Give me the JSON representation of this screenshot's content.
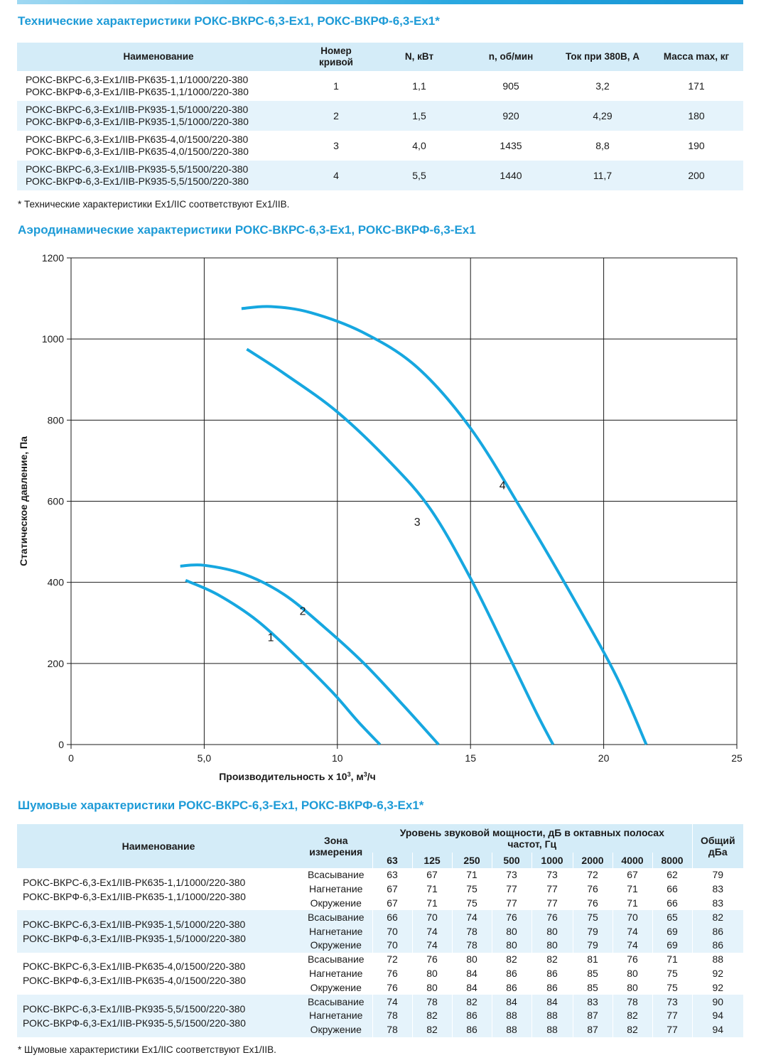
{
  "tech": {
    "title": "Технические характеристики РОКС-ВКРС-6,3-Ex1, РОКС-ВКРФ-6,3-Ex1*",
    "headers": {
      "name": "Наименование",
      "curve_l1": "Номер",
      "curve_l2": "кривой",
      "power": "N, кВт",
      "speed": "n, об/мин",
      "current": "Ток при 380В, А",
      "mass": "Масса max, кг"
    },
    "rows": [
      {
        "n1": "РОКС-ВКРС-6,3-Ex1/IIB-РК635-1,1/1000/220-380",
        "n2": "РОКС-ВКРФ-6,3-Ex1/IIB-РК635-1,1/1000/220-380",
        "curve": "1",
        "power": "1,1",
        "speed": "905",
        "current": "3,2",
        "mass": "171"
      },
      {
        "n1": "РОКС-ВКРС-6,3-Ex1/IIB-РК935-1,5/1000/220-380",
        "n2": "РОКС-ВКРФ-6,3-Ex1/IIB-РК935-1,5/1000/220-380",
        "curve": "2",
        "power": "1,5",
        "speed": "920",
        "current": "4,29",
        "mass": "180"
      },
      {
        "n1": "РОКС-ВКРС-6,3-Ex1/IIB-РК635-4,0/1500/220-380",
        "n2": "РОКС-ВКРФ-6,3-Ex1/IIB-РК635-4,0/1500/220-380",
        "curve": "3",
        "power": "4,0",
        "speed": "1435",
        "current": "8,8",
        "mass": "190"
      },
      {
        "n1": "РОКС-ВКРС-6,3-Ex1/IIB-РК935-5,5/1500/220-380",
        "n2": "РОКС-ВКРФ-6,3-Ex1/IIB-РК935-5,5/1500/220-380",
        "curve": "4",
        "power": "5,5",
        "speed": "1440",
        "current": "11,7",
        "mass": "200"
      }
    ],
    "note": "* Технические характеристики Ex1/IIC соответствуют Ex1/IIB."
  },
  "aero": {
    "title": "Аэродинамические характеристики РОКС-ВКРС-6,3-Ex1, РОКС-ВКРФ-6,3-Ex1"
  },
  "chart_data": {
    "type": "line",
    "title": "",
    "xlabel_main": "Производительность х 10",
    "xlabel_sup": "3",
    "xlabel_unit": ", м",
    "xlabel_unit_sup": "3",
    "xlabel_tail": "/ч",
    "ylabel": "Статическое давление, Па",
    "xlim": [
      0,
      25
    ],
    "ylim": [
      0,
      1200
    ],
    "grid": true,
    "x_ticks": [
      0,
      5,
      10,
      15,
      20,
      25
    ],
    "x_tick_labels": [
      "0",
      "5,0",
      "10",
      "15",
      "20",
      "25"
    ],
    "y_ticks": [
      0,
      200,
      400,
      600,
      800,
      1000,
      1200
    ],
    "y_tick_labels": [
      "0",
      "200",
      "400",
      "600",
      "800",
      "1000",
      "1200"
    ],
    "line_color": "#16a7e0",
    "series": [
      {
        "label": "1",
        "label_pos": [
          7.5,
          255
        ],
        "points": [
          [
            4.3,
            405
          ],
          [
            5.5,
            370
          ],
          [
            7.0,
            305
          ],
          [
            8.5,
            215
          ],
          [
            9.8,
            130
          ],
          [
            10.8,
            55
          ],
          [
            11.6,
            0
          ]
        ]
      },
      {
        "label": "2",
        "label_pos": [
          8.7,
          320
        ],
        "points": [
          [
            4.1,
            440
          ],
          [
            5.0,
            442
          ],
          [
            6.5,
            420
          ],
          [
            8.0,
            370
          ],
          [
            9.5,
            290
          ],
          [
            11.0,
            200
          ],
          [
            12.5,
            95
          ],
          [
            13.8,
            0
          ]
        ]
      },
      {
        "label": "3",
        "label_pos": [
          13.0,
          540
        ],
        "points": [
          [
            6.6,
            975
          ],
          [
            8.0,
            915
          ],
          [
            10.0,
            820
          ],
          [
            12.0,
            695
          ],
          [
            13.5,
            580
          ],
          [
            15.0,
            410
          ],
          [
            16.5,
            210
          ],
          [
            17.5,
            75
          ],
          [
            18.1,
            0
          ]
        ]
      },
      {
        "label": "4",
        "label_pos": [
          16.2,
          630
        ],
        "points": [
          [
            6.4,
            1075
          ],
          [
            7.5,
            1080
          ],
          [
            9.0,
            1065
          ],
          [
            11.0,
            1015
          ],
          [
            13.0,
            930
          ],
          [
            15.0,
            780
          ],
          [
            17.0,
            570
          ],
          [
            19.0,
            345
          ],
          [
            20.5,
            165
          ],
          [
            21.6,
            0
          ]
        ]
      }
    ]
  },
  "noise": {
    "title": "Шумовые характеристики РОКС-ВКРС-6,3-Ex1, РОКС-ВКРФ-6,3-Ex1*",
    "headers": {
      "name": "Наименование",
      "zone_l1": "Зона",
      "zone_l2": "измерения",
      "level_l1": "Уровень звуковой мощности, дБ в октавных полосах",
      "level_l2": "частот, Гц",
      "total_l1": "Общий",
      "total_l2": "дБа"
    },
    "freqs": [
      "63",
      "125",
      "250",
      "500",
      "1000",
      "2000",
      "4000",
      "8000"
    ],
    "groups": [
      {
        "n1": "РОКС-ВКРС-6,3-Ex1/IIB-РК635-1,1/1000/220-380",
        "n2": "РОКС-ВКРФ-6,3-Ex1/IIB-РК635-1,1/1000/220-380",
        "rows": [
          {
            "zone": "Всасывание",
            "v": [
              "63",
              "67",
              "71",
              "73",
              "73",
              "72",
              "67",
              "62"
            ],
            "total": "79"
          },
          {
            "zone": "Нагнетание",
            "v": [
              "67",
              "71",
              "75",
              "77",
              "77",
              "76",
              "71",
              "66"
            ],
            "total": "83"
          },
          {
            "zone": "Окружение",
            "v": [
              "67",
              "71",
              "75",
              "77",
              "77",
              "76",
              "71",
              "66"
            ],
            "total": "83"
          }
        ]
      },
      {
        "n1": "РОКС-ВКРС-6,3-Ex1/IIB-РК935-1,5/1000/220-380",
        "n2": "РОКС-ВКРФ-6,3-Ex1/IIB-РК935-1,5/1000/220-380",
        "rows": [
          {
            "zone": "Всасывание",
            "v": [
              "66",
              "70",
              "74",
              "76",
              "76",
              "75",
              "70",
              "65"
            ],
            "total": "82"
          },
          {
            "zone": "Нагнетание",
            "v": [
              "70",
              "74",
              "78",
              "80",
              "80",
              "79",
              "74",
              "69"
            ],
            "total": "86"
          },
          {
            "zone": "Окружение",
            "v": [
              "70",
              "74",
              "78",
              "80",
              "80",
              "79",
              "74",
              "69"
            ],
            "total": "86"
          }
        ]
      },
      {
        "n1": "РОКС-ВКРС-6,3-Ex1/IIB-РК635-4,0/1500/220-380",
        "n2": "РОКС-ВКРФ-6,3-Ex1/IIB-РК635-4,0/1500/220-380",
        "rows": [
          {
            "zone": "Всасывание",
            "v": [
              "72",
              "76",
              "80",
              "82",
              "82",
              "81",
              "76",
              "71"
            ],
            "total": "88"
          },
          {
            "zone": "Нагнетание",
            "v": [
              "76",
              "80",
              "84",
              "86",
              "86",
              "85",
              "80",
              "75"
            ],
            "total": "92"
          },
          {
            "zone": "Окружение",
            "v": [
              "76",
              "80",
              "84",
              "86",
              "86",
              "85",
              "80",
              "75"
            ],
            "total": "92"
          }
        ]
      },
      {
        "n1": "РОКС-ВКРС-6,3-Ex1/IIB-РК935-5,5/1500/220-380",
        "n2": "РОКС-ВКРФ-6,3-Ex1/IIB-РК935-5,5/1500/220-380",
        "rows": [
          {
            "zone": "Всасывание",
            "v": [
              "74",
              "78",
              "82",
              "84",
              "84",
              "83",
              "78",
              "73"
            ],
            "total": "90"
          },
          {
            "zone": "Нагнетание",
            "v": [
              "78",
              "82",
              "86",
              "88",
              "88",
              "87",
              "82",
              "77"
            ],
            "total": "94"
          },
          {
            "zone": "Окружение",
            "v": [
              "78",
              "82",
              "86",
              "88",
              "88",
              "87",
              "82",
              "77"
            ],
            "total": "94"
          }
        ]
      }
    ],
    "note": "* Шумовые характеристики Ex1/IIC соответствуют Ex1/IIB."
  }
}
